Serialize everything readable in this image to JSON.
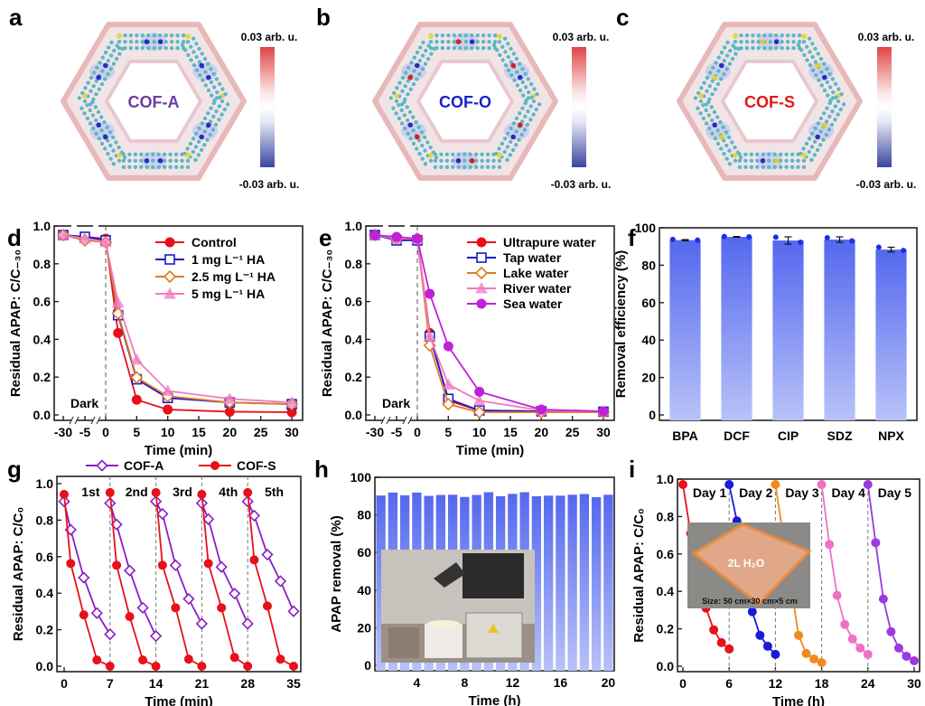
{
  "chart_data": [
    {
      "id": "a",
      "type": "other",
      "panel_letter": "a",
      "title": "COF-A",
      "title_color": "#6b3fa0",
      "colorbar": {
        "max_label": "0.03 arb. u.",
        "min_label": "-0.03 arb. u.",
        "max_color": "#e04545",
        "mid_color": "#ffffff",
        "min_color": "#3a45a0"
      },
      "heteroatom_color": "#2030c0"
    },
    {
      "id": "b",
      "type": "other",
      "panel_letter": "b",
      "title": "COF-O",
      "title_color": "#1a22c8",
      "colorbar": {
        "max_label": "0.03 arb. u.",
        "min_label": "-0.03 arb. u.",
        "max_color": "#e04545",
        "mid_color": "#ffffff",
        "min_color": "#3a45a0"
      },
      "heteroatom_color": "#d02020"
    },
    {
      "id": "c",
      "type": "other",
      "panel_letter": "c",
      "title": "COF-S",
      "title_color": "#e01818",
      "colorbar": {
        "max_label": "0.03 arb. u.",
        "min_label": "-0.03 arb. u.",
        "max_color": "#e04545",
        "mid_color": "#ffffff",
        "min_color": "#3a45a0"
      },
      "heteroatom_color": "#e0d020"
    },
    {
      "id": "d",
      "type": "line",
      "panel_letter": "d",
      "xlabel": "Time (min)",
      "ylabel": "Residual APAP: C/C-30",
      "ylim": [
        0,
        1.0
      ],
      "x_ticks": [
        "-30",
        "-5",
        "0",
        "5",
        "10",
        "15",
        "20",
        "25",
        "30"
      ],
      "y_ticks": [
        "0.0",
        "0.2",
        "0.4",
        "0.6",
        "0.8",
        "1.0"
      ],
      "annotation": "Dark",
      "x": [
        -30,
        -5,
        0,
        2,
        5,
        10,
        20,
        30
      ],
      "series": [
        {
          "name": "Control",
          "color": "#e8101a",
          "marker": "circle",
          "values": [
            1.0,
            0.99,
            0.98,
            0.45,
            0.075,
            0.02,
            0.008,
            0.005
          ]
        },
        {
          "name": "1 mg L-1 HA",
          "color": "#1a1ac8",
          "marker": "square",
          "values": [
            1.0,
            0.99,
            0.97,
            0.55,
            0.19,
            0.085,
            0.06,
            0.05
          ]
        },
        {
          "name": "2.5 mg L-1 HA",
          "color": "#e07a20",
          "marker": "diamond",
          "values": [
            1.0,
            0.97,
            0.96,
            0.56,
            0.2,
            0.095,
            0.06,
            0.05
          ]
        },
        {
          "name": "5 mg L-1 HA",
          "color": "#f07ac0",
          "marker": "triangle",
          "values": [
            1.0,
            0.98,
            0.96,
            0.62,
            0.3,
            0.125,
            0.08,
            0.06
          ]
        }
      ]
    },
    {
      "id": "e",
      "type": "line",
      "panel_letter": "e",
      "xlabel": "Time (min)",
      "ylabel": "Residual APAP: C/C-30",
      "ylim": [
        0,
        1.0
      ],
      "x_ticks": [
        "-30",
        "-5",
        "0",
        "5",
        "10",
        "15",
        "20",
        "25",
        "30"
      ],
      "y_ticks": [
        "0.0",
        "0.2",
        "0.4",
        "0.6",
        "0.8",
        "1.0"
      ],
      "annotation": "Dark",
      "x": [
        -30,
        -5,
        0,
        2,
        5,
        10,
        20,
        30
      ],
      "series": [
        {
          "name": "Ultrapure water",
          "color": "#e8101a",
          "marker": "circle",
          "values": [
            1.0,
            0.98,
            0.98,
            0.45,
            0.07,
            0.015,
            0.01,
            0.008
          ]
        },
        {
          "name": "Tap water",
          "color": "#1a1ac8",
          "marker": "square",
          "values": [
            1.0,
            0.97,
            0.97,
            0.43,
            0.08,
            0.015,
            0.01,
            0.008
          ]
        },
        {
          "name": "Lake water",
          "color": "#e07a20",
          "marker": "diamond",
          "values": [
            1.0,
            0.98,
            0.98,
            0.38,
            0.05,
            0.005,
            0.005,
            0.005
          ]
        },
        {
          "name": "River water",
          "color": "#f07ac0",
          "marker": "triangle",
          "values": [
            1.0,
            0.98,
            0.98,
            0.43,
            0.16,
            0.07,
            0.015,
            0.01
          ]
        },
        {
          "name": "Sea water",
          "color": "#c020d8",
          "marker": "hexagon",
          "values": [
            1.0,
            0.99,
            0.98,
            0.67,
            0.375,
            0.12,
            0.02,
            0.01
          ]
        }
      ]
    },
    {
      "id": "f",
      "type": "bar",
      "panel_letter": "f",
      "xlabel": "",
      "ylabel": "Removal efficiency (%)",
      "ylim": [
        0,
        100
      ],
      "y_ticks": [
        "0",
        "20",
        "40",
        "60",
        "80",
        "100"
      ],
      "categories": [
        "BPA",
        "DCF",
        "CIP",
        "SDZ",
        "NPX"
      ],
      "values": [
        96.2,
        98.0,
        96.0,
        96.5,
        91.0
      ],
      "errors": [
        0.3,
        0.2,
        2.0,
        1.5,
        1.3
      ],
      "points": [
        [
          96.6,
          96.2
        ],
        [
          98.2,
          98.0
        ],
        [
          97.8,
          95.0
        ],
        [
          97.5,
          95.8
        ],
        [
          92.3,
          90.5
        ]
      ],
      "bar_color_top": "#5468ee",
      "bar_color_bottom": "#b8c2f8"
    },
    {
      "id": "g",
      "type": "line",
      "panel_letter": "g",
      "xlabel": "Time (min)",
      "ylabel": "Residual APAP: C/C0",
      "ylim": [
        0,
        1.0
      ],
      "xlim": [
        0,
        35
      ],
      "x_ticks": [
        "0",
        "7",
        "14",
        "21",
        "28",
        "35"
      ],
      "y_ticks": [
        "0.0",
        "0.2",
        "0.4",
        "0.6",
        "0.8",
        "1.0"
      ],
      "cycle_labels": [
        "1st",
        "2nd",
        "3rd",
        "4th",
        "5th"
      ],
      "series": [
        {
          "name": "COF-A",
          "color": "#8a1ec8",
          "marker": "diamond",
          "x": [
            0,
            1,
            3,
            5,
            7,
            7,
            8,
            10,
            12,
            14,
            14,
            15,
            17,
            19,
            21,
            21,
            22,
            24,
            26,
            28,
            28,
            29,
            31,
            33,
            35
          ],
          "values": [
            0.93,
            0.77,
            0.5,
            0.3,
            0.18,
            0.92,
            0.8,
            0.54,
            0.33,
            0.17,
            0.93,
            0.86,
            0.57,
            0.38,
            0.24,
            0.92,
            0.83,
            0.56,
            0.41,
            0.24,
            0.93,
            0.85,
            0.63,
            0.48,
            0.31
          ]
        },
        {
          "name": "COF-S",
          "color": "#e8101a",
          "marker": "circle",
          "x": [
            0,
            1,
            3,
            5,
            7,
            7,
            8,
            10,
            12,
            14,
            14,
            15,
            17,
            19,
            21,
            21,
            22,
            24,
            26,
            28,
            28,
            29,
            31,
            33,
            35
          ],
          "values": [
            0.97,
            0.58,
            0.29,
            0.035,
            0.0,
            0.98,
            0.57,
            0.28,
            0.035,
            0.0,
            0.98,
            0.57,
            0.33,
            0.04,
            0.0,
            0.97,
            0.58,
            0.33,
            0.05,
            0.0,
            0.98,
            0.6,
            0.34,
            0.04,
            0.0
          ]
        }
      ]
    },
    {
      "id": "h",
      "type": "bar",
      "panel_letter": "h",
      "xlabel": "Time (h)",
      "ylabel": "APAP removal (%)",
      "ylim": [
        0,
        100
      ],
      "x_ticks": [
        "4",
        "8",
        "12",
        "16",
        "20"
      ],
      "y_ticks": [
        "0",
        "20",
        "40",
        "60",
        "80",
        "100"
      ],
      "categories": [
        1,
        2,
        3,
        4,
        5,
        6,
        7,
        8,
        9,
        10,
        11,
        12,
        13,
        14,
        15,
        16,
        17,
        18,
        19,
        20
      ],
      "values": [
        93.0,
        94.6,
        93.1,
        94.6,
        92.8,
        93.3,
        93.4,
        92.2,
        93.3,
        94.8,
        92.6,
        93.9,
        94.8,
        92.6,
        92.9,
        92.9,
        93.4,
        93.8,
        92.1,
        93.4
      ],
      "bar_color_top": "#5468ee",
      "bar_color_bottom": "#b8c2f8",
      "inset": "photo-of-photoreactor-setup"
    },
    {
      "id": "i",
      "type": "line",
      "panel_letter": "i",
      "xlabel": "Time (h)",
      "ylabel": "Residual APAP: C/C0",
      "ylim": [
        0,
        1.0
      ],
      "xlim": [
        0,
        30
      ],
      "x_ticks": [
        "0",
        "6",
        "12",
        "18",
        "24",
        "30"
      ],
      "y_ticks": [
        "0.0",
        "0.2",
        "0.4",
        "0.6",
        "0.8",
        "1.0"
      ],
      "day_labels": [
        "Day 1",
        "Day 2",
        "Day 3",
        "Day 4",
        "Day 5"
      ],
      "inset": {
        "label": "2L H2O",
        "caption": "Size: 50 cm×30 cm×5 cm"
      },
      "series": [
        {
          "name": "Day 1",
          "color": "#e8101a",
          "x": [
            0,
            1,
            2,
            3,
            4,
            5,
            6
          ],
          "values": [
            1.0,
            0.73,
            0.55,
            0.32,
            0.2,
            0.13,
            0.095
          ]
        },
        {
          "name": "Day 2",
          "color": "#1a1ad8",
          "x": [
            6,
            7,
            8,
            9,
            10,
            11,
            12
          ],
          "values": [
            1.0,
            0.8,
            0.55,
            0.3,
            0.17,
            0.11,
            0.065
          ]
        },
        {
          "name": "Day 3",
          "color": "#f08a20",
          "x": [
            12,
            13,
            14,
            15,
            16,
            17,
            18
          ],
          "values": [
            1.0,
            0.72,
            0.45,
            0.17,
            0.07,
            0.04,
            0.02
          ]
        },
        {
          "name": "Day 4",
          "color": "#f070c8",
          "x": [
            18,
            19,
            20,
            21,
            22,
            23,
            24
          ],
          "values": [
            1.0,
            0.67,
            0.39,
            0.23,
            0.15,
            0.1,
            0.065
          ]
        },
        {
          "name": "Day 5",
          "color": "#9a3ae0",
          "x": [
            24,
            25,
            26,
            27,
            28,
            29,
            30
          ],
          "values": [
            1.0,
            0.68,
            0.37,
            0.19,
            0.1,
            0.055,
            0.03
          ]
        }
      ]
    }
  ]
}
